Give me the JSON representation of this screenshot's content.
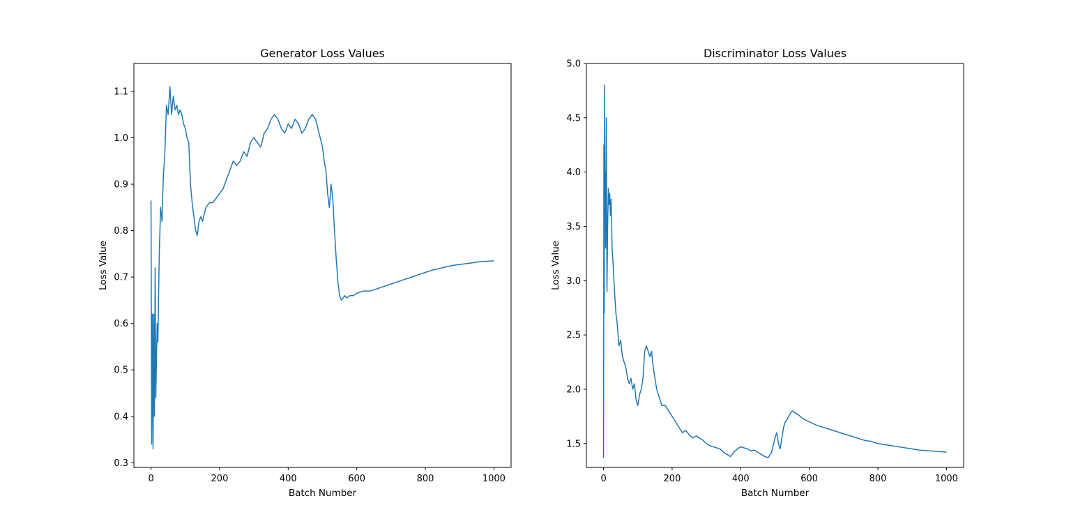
{
  "chart_data": [
    {
      "type": "line",
      "title": "Generator Loss Values",
      "xlabel": "Batch Number",
      "ylabel": "Loss Value",
      "xlim": [
        -50,
        1050
      ],
      "ylim": [
        0.29,
        1.16
      ],
      "xticks": [
        0,
        200,
        400,
        600,
        800,
        1000
      ],
      "xtick_labels": [
        "0",
        "200",
        "400",
        "600",
        "800",
        "1000"
      ],
      "yticks": [
        0.3,
        0.4,
        0.5,
        0.6,
        0.7,
        0.8,
        0.9,
        1.0,
        1.1
      ],
      "ytick_labels": [
        "0.3",
        "0.4",
        "0.5",
        "0.6",
        "0.7",
        "0.8",
        "0.9",
        "1.0",
        "1.1"
      ],
      "grid": false,
      "color": "#1f77b4",
      "series": [
        {
          "x": [
            0,
            2,
            4,
            6,
            8,
            10,
            12,
            14,
            16,
            18,
            20,
            24,
            28,
            32,
            36,
            40,
            45,
            50,
            55,
            60,
            65,
            70,
            75,
            80,
            85,
            90,
            95,
            100,
            105,
            110,
            115,
            120,
            125,
            130,
            135,
            140,
            145,
            150,
            160,
            170,
            180,
            190,
            200,
            210,
            220,
            230,
            240,
            250,
            260,
            270,
            280,
            290,
            300,
            310,
            320,
            330,
            340,
            350,
            360,
            370,
            380,
            390,
            400,
            410,
            420,
            430,
            440,
            450,
            460,
            470,
            480,
            490,
            500,
            505,
            510,
            515,
            520,
            525,
            530,
            535,
            540,
            545,
            550,
            555,
            560,
            565,
            570,
            580,
            590,
            600,
            620,
            640,
            660,
            680,
            700,
            720,
            740,
            760,
            780,
            800,
            820,
            840,
            860,
            880,
            900,
            920,
            940,
            960,
            980,
            1000
          ],
          "y": [
            0.865,
            0.34,
            0.62,
            0.33,
            0.62,
            0.4,
            0.72,
            0.44,
            0.53,
            0.6,
            0.56,
            0.75,
            0.85,
            0.82,
            0.92,
            0.96,
            1.07,
            1.05,
            1.11,
            1.05,
            1.09,
            1.06,
            1.07,
            1.05,
            1.06,
            1.05,
            1.03,
            1.02,
            1.0,
            0.99,
            0.9,
            0.86,
            0.83,
            0.8,
            0.79,
            0.82,
            0.83,
            0.82,
            0.85,
            0.86,
            0.86,
            0.87,
            0.88,
            0.89,
            0.91,
            0.93,
            0.95,
            0.94,
            0.95,
            0.97,
            0.96,
            0.99,
            1.0,
            0.99,
            0.98,
            1.01,
            1.02,
            1.04,
            1.05,
            1.04,
            1.02,
            1.01,
            1.03,
            1.02,
            1.04,
            1.03,
            1.01,
            1.02,
            1.04,
            1.05,
            1.04,
            1.01,
            0.98,
            0.95,
            0.93,
            0.88,
            0.85,
            0.9,
            0.87,
            0.8,
            0.74,
            0.69,
            0.66,
            0.65,
            0.655,
            0.66,
            0.655,
            0.66,
            0.66,
            0.665,
            0.67,
            0.67,
            0.675,
            0.68,
            0.685,
            0.69,
            0.695,
            0.7,
            0.705,
            0.71,
            0.715,
            0.718,
            0.722,
            0.725,
            0.727,
            0.729,
            0.731,
            0.733,
            0.734,
            0.735
          ]
        }
      ]
    },
    {
      "type": "line",
      "title": "Discriminator Loss Values",
      "xlabel": "Batch Number",
      "ylabel": "Loss Value",
      "xlim": [
        -50,
        1050
      ],
      "ylim": [
        1.28,
        5.0
      ],
      "xticks": [
        0,
        200,
        400,
        600,
        800,
        1000
      ],
      "xtick_labels": [
        "0",
        "200",
        "400",
        "600",
        "800",
        "1000"
      ],
      "yticks": [
        1.5,
        2.0,
        2.5,
        3.0,
        3.5,
        4.0,
        4.5,
        5.0
      ],
      "ytick_labels": [
        "1.5",
        "2.0",
        "2.5",
        "3.0",
        "3.5",
        "4.0",
        "4.5",
        "5.0"
      ],
      "grid": false,
      "color": "#1f77b4",
      "series": [
        {
          "x": [
            0,
            1,
            2,
            3,
            4,
            5,
            6,
            8,
            10,
            12,
            14,
            16,
            18,
            20,
            22,
            25,
            28,
            32,
            36,
            40,
            45,
            50,
            55,
            60,
            65,
            70,
            75,
            80,
            85,
            90,
            95,
            100,
            105,
            110,
            115,
            120,
            125,
            130,
            135,
            140,
            145,
            150,
            155,
            160,
            170,
            180,
            190,
            200,
            210,
            220,
            230,
            240,
            250,
            260,
            270,
            280,
            290,
            300,
            310,
            320,
            330,
            340,
            350,
            360,
            370,
            380,
            390,
            400,
            410,
            420,
            430,
            440,
            450,
            460,
            470,
            480,
            490,
            500,
            505,
            510,
            515,
            520,
            525,
            530,
            535,
            540,
            545,
            550,
            560,
            570,
            580,
            600,
            620,
            640,
            660,
            680,
            700,
            720,
            740,
            760,
            780,
            800,
            820,
            840,
            860,
            880,
            900,
            920,
            940,
            960,
            980,
            1000
          ],
          "y": [
            1.37,
            4.25,
            2.7,
            4.8,
            3.6,
            4.0,
            3.3,
            4.5,
            2.9,
            3.5,
            3.85,
            3.7,
            3.8,
            3.6,
            3.75,
            3.3,
            3.15,
            2.9,
            2.7,
            2.6,
            2.4,
            2.45,
            2.3,
            2.25,
            2.2,
            2.1,
            2.05,
            2.1,
            2.0,
            2.05,
            1.9,
            1.85,
            1.95,
            2.0,
            2.1,
            2.35,
            2.4,
            2.35,
            2.3,
            2.35,
            2.2,
            2.1,
            2.0,
            1.95,
            1.85,
            1.85,
            1.8,
            1.75,
            1.7,
            1.65,
            1.6,
            1.62,
            1.58,
            1.55,
            1.57,
            1.55,
            1.53,
            1.5,
            1.48,
            1.47,
            1.46,
            1.45,
            1.42,
            1.4,
            1.38,
            1.42,
            1.45,
            1.47,
            1.46,
            1.45,
            1.43,
            1.44,
            1.42,
            1.4,
            1.38,
            1.37,
            1.42,
            1.55,
            1.6,
            1.5,
            1.45,
            1.55,
            1.65,
            1.7,
            1.72,
            1.75,
            1.78,
            1.8,
            1.78,
            1.76,
            1.73,
            1.7,
            1.67,
            1.65,
            1.63,
            1.61,
            1.59,
            1.57,
            1.55,
            1.53,
            1.52,
            1.5,
            1.49,
            1.48,
            1.47,
            1.46,
            1.45,
            1.44,
            1.435,
            1.43,
            1.425,
            1.42
          ]
        }
      ]
    }
  ]
}
